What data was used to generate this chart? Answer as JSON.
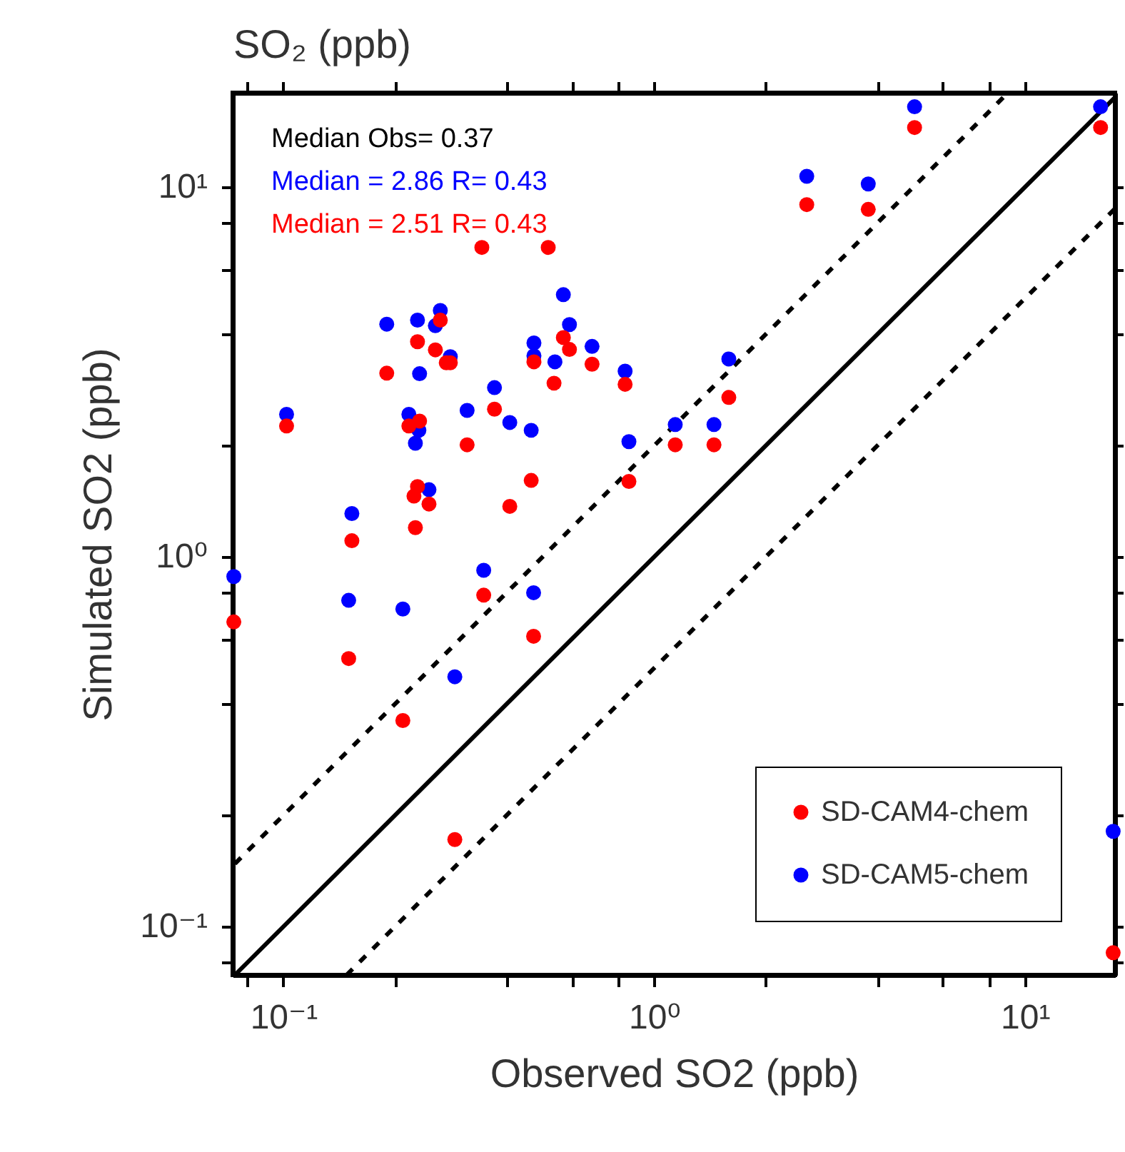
{
  "chart_data": {
    "type": "scatter",
    "xlabel": "Observed SO2 (ppb)",
    "ylabel": "Simulated SO2 (ppb)",
    "x2label": "SO₂ (ppb)",
    "log": "xy",
    "legend": "bottom right",
    "grid": false,
    "annotations": [
      "Median Obs= 0.37",
      "Median = 2.86 R= 0.43",
      "Median = 2.51 R= 0.43"
    ],
    "xlim": [
      0.073,
      17.5
    ],
    "ylim": [
      0.074,
      18
    ],
    "xticks": [
      {
        "value": 0.08,
        "label": null
      },
      {
        "value": 0.1,
        "label": "10⁻¹"
      },
      {
        "value": 0.2,
        "label": null
      },
      {
        "value": 0.4,
        "label": null
      },
      {
        "value": 0.6,
        "label": null
      },
      {
        "value": 0.8,
        "label": null
      },
      {
        "value": 1,
        "label": "10⁰"
      },
      {
        "value": 2,
        "label": null
      },
      {
        "value": 4,
        "label": null
      },
      {
        "value": 6,
        "label": null
      },
      {
        "value": 8,
        "label": null
      },
      {
        "value": 10,
        "label": "10¹"
      }
    ],
    "yticks": [
      {
        "value": 0.08,
        "label": null
      },
      {
        "value": 0.1,
        "label": "10⁻¹"
      },
      {
        "value": 0.2,
        "label": null
      },
      {
        "value": 0.4,
        "label": null
      },
      {
        "value": 0.6,
        "label": null
      },
      {
        "value": 0.8,
        "label": null
      },
      {
        "value": 1,
        "label": "10⁰"
      },
      {
        "value": 2,
        "label": null
      },
      {
        "value": 4,
        "label": null
      },
      {
        "value": 6,
        "label": null
      },
      {
        "value": 8,
        "label": null
      },
      {
        "value": 10,
        "label": "10¹"
      }
    ],
    "series": [
      {
        "type": "line",
        "color": "#000000",
        "line_style": "solid",
        "x": [
          0.074,
          17.5
        ],
        "values": [
          0.074,
          17.5
        ]
      },
      {
        "type": "line",
        "color": "#000000",
        "line_style": "dashed",
        "x": [
          0.074,
          9
        ],
        "values": [
          0.148,
          18
        ]
      },
      {
        "type": "line",
        "color": "#000000",
        "line_style": "dashed",
        "x": [
          0.148,
          17.5
        ],
        "values": [
          0.074,
          8.75
        ]
      },
      {
        "name": "SD-CAM4-chem",
        "color": "#ff0000",
        "marker": "circle",
        "x": [
          0.0735,
          0.102,
          0.15,
          0.153,
          0.19,
          0.21,
          0.218,
          0.225,
          0.227,
          0.23,
          0.233,
          0.23,
          0.247,
          0.257,
          0.265,
          0.275,
          0.282,
          0.29,
          0.313,
          0.343,
          0.347,
          0.371,
          0.408,
          0.466,
          0.473,
          0.474,
          0.518,
          0.537,
          0.569,
          0.591,
          0.68,
          0.835,
          0.855,
          1.14,
          1.45,
          1.59,
          2.58,
          3.78,
          5.04,
          16.0,
          17.3
        ],
        "values": [
          0.667,
          2.26,
          0.531,
          1.106,
          3.14,
          0.361,
          2.26,
          1.46,
          1.2,
          1.55,
          2.33,
          3.82,
          1.39,
          3.63,
          4.37,
          3.35,
          3.35,
          0.172,
          2.01,
          6.87,
          0.788,
          2.51,
          1.37,
          1.61,
          0.61,
          3.37,
          6.87,
          2.95,
          3.92,
          3.64,
          3.32,
          2.93,
          1.6,
          2.01,
          2.01,
          2.7,
          8.97,
          8.71,
          14.5,
          14.5,
          0.085
        ]
      },
      {
        "name": "SD-CAM5-chem",
        "color": "#0000ff",
        "marker": "circle",
        "x": [
          0.0735,
          0.102,
          0.15,
          0.153,
          0.19,
          0.21,
          0.218,
          0.227,
          0.232,
          0.23,
          0.233,
          0.247,
          0.257,
          0.265,
          0.282,
          0.29,
          0.313,
          0.347,
          0.371,
          0.408,
          0.466,
          0.473,
          0.474,
          0.474,
          0.54,
          0.569,
          0.591,
          0.68,
          0.835,
          0.855,
          1.14,
          1.45,
          1.59,
          2.58,
          3.78,
          5.04,
          16.0,
          17.3
        ],
        "values": [
          0.885,
          2.43,
          0.763,
          1.31,
          4.26,
          0.723,
          2.43,
          2.03,
          2.2,
          4.37,
          3.13,
          1.52,
          4.22,
          4.64,
          3.48,
          0.474,
          2.49,
          0.92,
          2.87,
          2.31,
          2.2,
          0.8,
          3.79,
          3.5,
          3.37,
          5.12,
          4.25,
          3.71,
          3.18,
          2.05,
          2.28,
          2.28,
          3.43,
          10.7,
          10.2,
          16.5,
          16.5,
          0.181
        ]
      }
    ]
  }
}
